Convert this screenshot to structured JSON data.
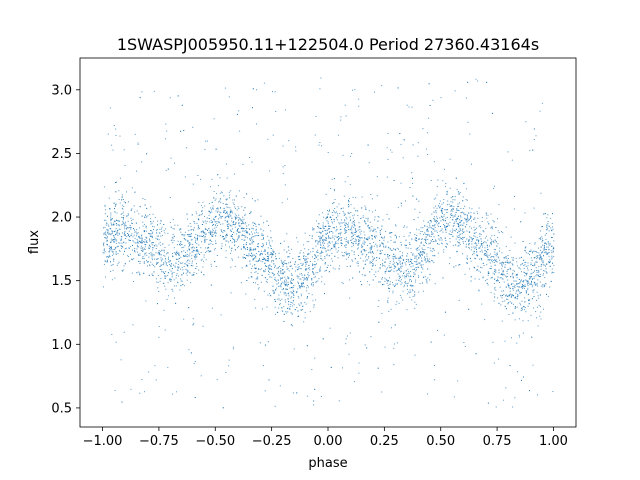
{
  "chart_data": {
    "type": "scatter",
    "title": "1SWASPJ005950.11+122504.0 Period 27360.43164s",
    "xlabel": "phase",
    "ylabel": "flux",
    "xlim": [
      -1.1,
      1.1
    ],
    "ylim": [
      0.35,
      3.25
    ],
    "xticks": [
      -1.0,
      -0.75,
      -0.5,
      -0.25,
      0.0,
      0.25,
      0.5,
      0.75,
      1.0
    ],
    "xtick_labels": [
      "−1.00",
      "−0.75",
      "−0.50",
      "−0.25",
      "0.00",
      "0.25",
      "0.50",
      "0.75",
      "1.00"
    ],
    "yticks": [
      0.5,
      1.0,
      1.5,
      2.0,
      2.5,
      3.0
    ],
    "ytick_labels": [
      "0.5",
      "1.0",
      "1.5",
      "2.0",
      "2.5",
      "3.0"
    ],
    "grid": false,
    "legend": false,
    "marker_color": "#1f77b4",
    "series": [
      {
        "phase": [
          -1.0,
          -0.9,
          -0.8,
          -0.7,
          -0.6,
          -0.5,
          -0.45,
          -0.4,
          -0.3,
          -0.2,
          -0.15,
          -0.1,
          0.0,
          0.05,
          0.1,
          0.2,
          0.3,
          0.35,
          0.4,
          0.5,
          0.55,
          0.6,
          0.7,
          0.8,
          0.85,
          0.9,
          1.0
        ],
        "flux": [
          1.85,
          1.9,
          1.8,
          1.65,
          1.78,
          1.95,
          1.97,
          1.92,
          1.7,
          1.5,
          1.46,
          1.55,
          1.82,
          1.9,
          1.88,
          1.78,
          1.62,
          1.6,
          1.7,
          1.93,
          1.97,
          1.92,
          1.72,
          1.5,
          1.46,
          1.55,
          1.8
        ]
      }
    ]
  }
}
